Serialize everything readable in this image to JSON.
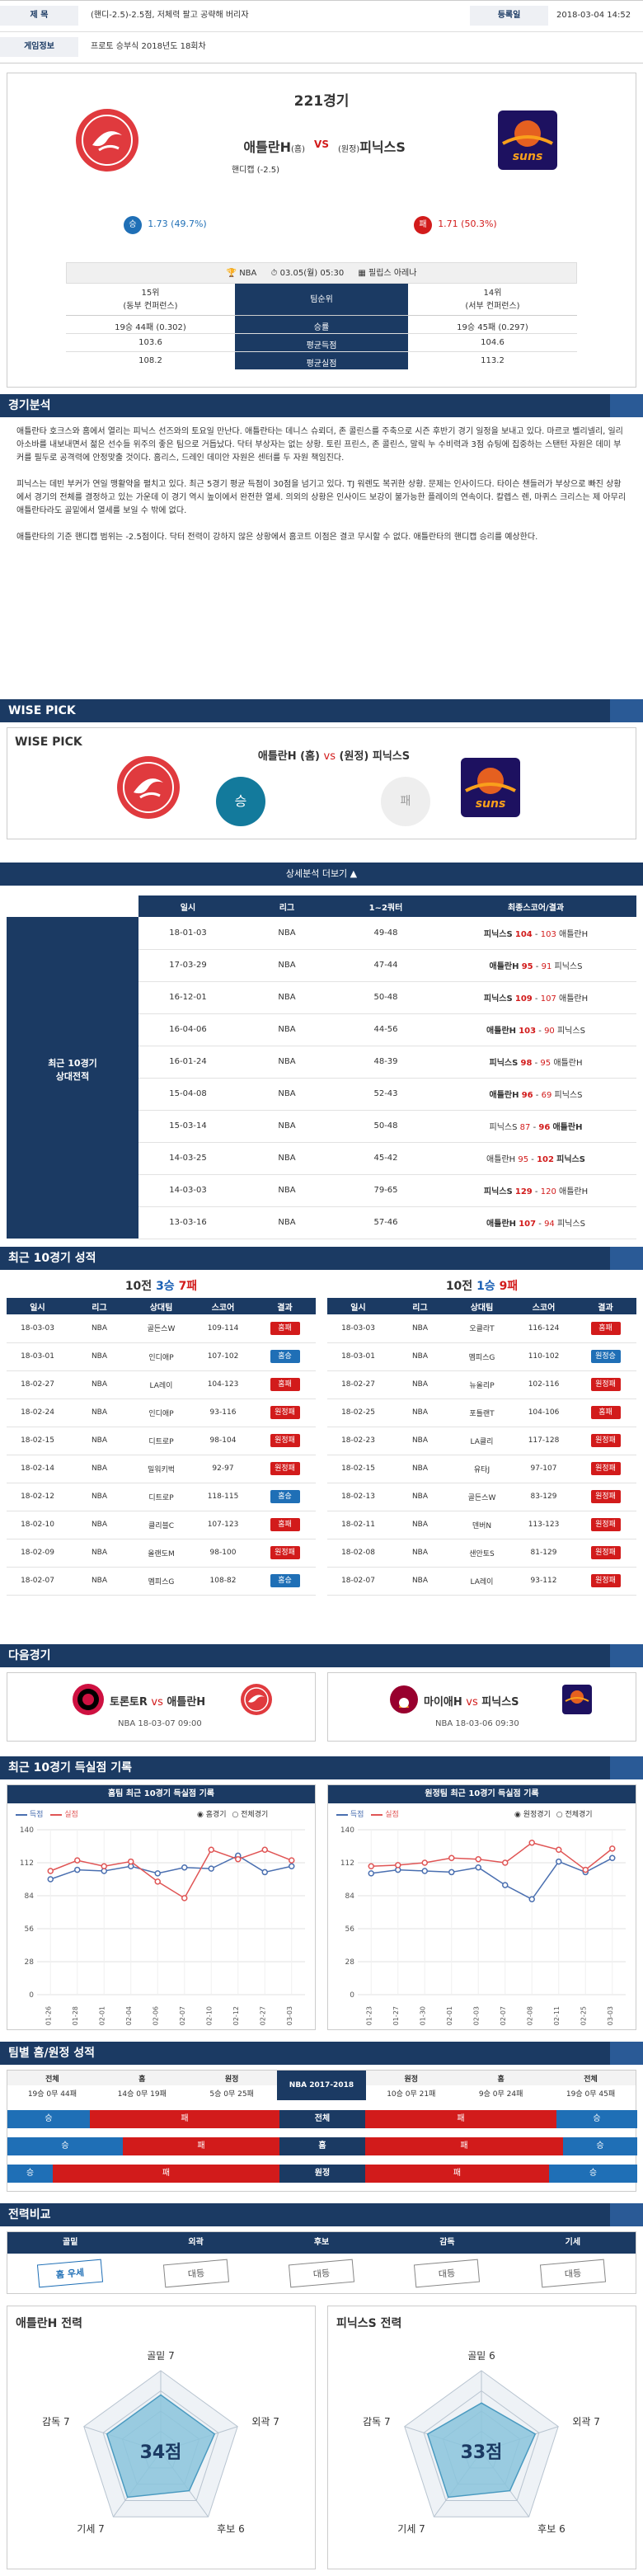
{
  "top": {
    "subject_label": "제 목",
    "subject": "(핸디-2.5)-2.5점, 저체력 팔고 공략해 버리자",
    "date_label": "등록일",
    "date": "2018-03-04 14:52",
    "info_label": "게임정보",
    "info": "프로토 승부식 2018년도 18회차"
  },
  "match": {
    "game_no": "221경기",
    "home_team": "애틀란H",
    "home_tag": "(홈)",
    "vs": "VS",
    "away_tag": "(원정)",
    "away_team": "피닉스S",
    "handicap": "핸디캡 (-2.5)",
    "home_odds_label": "승",
    "home_odds": "1.73 (49.7%)",
    "away_odds_label": "패",
    "away_odds": "1.71 (50.3%)",
    "league": "NBA",
    "datetime": "03.05(월) 05:30",
    "venue": "필립스 아레나"
  },
  "stats": {
    "home_rank": "15위",
    "home_conf": "(동부 컨퍼런스)",
    "away_rank": "14위",
    "away_conf": "(서부 컨퍼런스)",
    "rows": [
      {
        "label": "팀순위",
        "home": "",
        "away": ""
      },
      {
        "label": "승률",
        "home": "19승 44패 (0.302)",
        "away": "19승 45패 (0.297)"
      },
      {
        "label": "평균득점",
        "home": "103.6",
        "away": "104.6"
      },
      {
        "label": "평균실점",
        "home": "108.2",
        "away": "113.2"
      }
    ]
  },
  "analysis": {
    "title": "경기분석",
    "p1": "애틀란타 호크스와 홈에서 열리는 피닉스 선즈와의 토요일 만난다. 애틀란타는 데니스 슈뢰더, 존 콜린스를 주축으로 시즌 후반기 경기 일정을 보내고 있다. 마르코 벨리넬리, 일리아소바를 내보내면서 젊은 선수들 위주의 좋은 팀으로 거듭났다. 닥터 부상자는 없는 상황. 토린 프린스, 존 콜린스, 말릭 누 수비력과 3점 슈팅에 집중하는 스탠턴 자원은 데미 부커를 필두로 공격력에 안정맞출 것이다. 홈리스, 드레인 데미안 자원은 센터를 두 자원 책임진다.",
    "p2": "피닉스는 데빈 부커가 연일 맹활약을 펼치고 있다. 최근 5경기 평균 득점이 30점을 넘기고 있다. TJ 워렌도 복귀한 상황. 문제는 인사이드다. 타이슨 챈들러가 부상으로 빠진 상황에서 경기의 전체를 결정하고 있는 가운데 이 경기 역시 높이에서 완전한 열세. 의외의 상황은 인사이드 보강이 불가능한 플레이의 연속이다. 칼렙스 렌, 마퀴스 크리스는 제 아무리 애틀란타라도 골밑에서 열세를 보일 수 밖에 없다.",
    "p3": "애틀란타의 기준 핸디캡 범위는 -2.5점이다. 닥터 전력이 강하지 않은 상황에서 홈코트 이점은 결코 무시할 수 없다. 애틀란타의 핸디캡 승리를 예상한다."
  },
  "wise": {
    "title": "WISE PICK",
    "sub": "WISE PICK",
    "home": "애틀란H (홈)",
    "vs": "vs",
    "away": "(원정) 피닉스S",
    "pick_win": "승",
    "pick_loss": "패",
    "more": "상세분석 더보기 ▲"
  },
  "h2h": {
    "side_label_1": "최근 10경기",
    "side_label_2": "상대전적",
    "headers": [
      "일시",
      "리그",
      "1~2쿼터",
      "최종스코어/결과"
    ],
    "rows": [
      {
        "date": "18-01-03",
        "league": "NBA",
        "q": "49-48",
        "a": "피닉스S",
        "sa": "104",
        "sb": "103",
        "b": "애틀란H",
        "w": "a"
      },
      {
        "date": "17-03-29",
        "league": "NBA",
        "q": "47-44",
        "a": "애틀란H",
        "sa": "95",
        "sb": "91",
        "b": "피닉스S",
        "w": "a"
      },
      {
        "date": "16-12-01",
        "league": "NBA",
        "q": "50-48",
        "a": "피닉스S",
        "sa": "109",
        "sb": "107",
        "b": "애틀란H",
        "w": "a"
      },
      {
        "date": "16-04-06",
        "league": "NBA",
        "q": "44-56",
        "a": "애틀란H",
        "sa": "103",
        "sb": "90",
        "b": "피닉스S",
        "w": "a"
      },
      {
        "date": "16-01-24",
        "league": "NBA",
        "q": "48-39",
        "a": "피닉스S",
        "sa": "98",
        "sb": "95",
        "b": "애틀란H",
        "w": "a"
      },
      {
        "date": "15-04-08",
        "league": "NBA",
        "q": "52-43",
        "a": "애틀란H",
        "sa": "96",
        "sb": "69",
        "b": "피닉스S",
        "w": "a"
      },
      {
        "date": "15-03-14",
        "league": "NBA",
        "q": "50-48",
        "a": "피닉스S",
        "sa": "87",
        "sb": "96",
        "b": "애틀란H",
        "w": "b"
      },
      {
        "date": "14-03-25",
        "league": "NBA",
        "q": "45-42",
        "a": "애틀란H",
        "sa": "95",
        "sb": "102",
        "b": "피닉스S",
        "w": "b"
      },
      {
        "date": "14-03-03",
        "league": "NBA",
        "q": "79-65",
        "a": "피닉스S",
        "sa": "129",
        "sb": "120",
        "b": "애틀란H",
        "w": "a"
      },
      {
        "date": "13-03-16",
        "league": "NBA",
        "q": "57-46",
        "a": "애틀란H",
        "sa": "107",
        "sb": "94",
        "b": "피닉스S",
        "w": "a"
      }
    ]
  },
  "recent": {
    "title": "최근 10경기 성적",
    "left_prefix": "10전",
    "left_w": "3승",
    "left_l": "7패",
    "right_prefix": "10전",
    "right_w": "1승",
    "right_l": "9패",
    "headers": [
      "일시",
      "리그",
      "상대팀",
      "스코어",
      "결과"
    ],
    "left": [
      {
        "d": "18-03-03",
        "l": "NBA",
        "o": "골든스W",
        "s": "109-114",
        "r": "홈패",
        "t": "loss"
      },
      {
        "d": "18-03-01",
        "l": "NBA",
        "o": "인디애P",
        "s": "107-102",
        "r": "홈승",
        "t": "win"
      },
      {
        "d": "18-02-27",
        "l": "NBA",
        "o": "LA레이",
        "s": "104-123",
        "r": "홈패",
        "t": "loss"
      },
      {
        "d": "18-02-24",
        "l": "NBA",
        "o": "인디애P",
        "s": "93-116",
        "r": "원정패",
        "t": "loss"
      },
      {
        "d": "18-02-15",
        "l": "NBA",
        "o": "디트로P",
        "s": "98-104",
        "r": "원정패",
        "t": "loss"
      },
      {
        "d": "18-02-14",
        "l": "NBA",
        "o": "밀워키벅",
        "s": "92-97",
        "r": "원정패",
        "t": "loss"
      },
      {
        "d": "18-02-12",
        "l": "NBA",
        "o": "디트로P",
        "s": "118-115",
        "r": "홈승",
        "t": "win"
      },
      {
        "d": "18-02-10",
        "l": "NBA",
        "o": "클리블C",
        "s": "107-123",
        "r": "홈패",
        "t": "loss"
      },
      {
        "d": "18-02-09",
        "l": "NBA",
        "o": "올랜도M",
        "s": "98-100",
        "r": "원정패",
        "t": "loss"
      },
      {
        "d": "18-02-07",
        "l": "NBA",
        "o": "멤피스G",
        "s": "108-82",
        "r": "홈승",
        "t": "win"
      }
    ],
    "right": [
      {
        "d": "18-03-03",
        "l": "NBA",
        "o": "오클라T",
        "s": "116-124",
        "r": "홈패",
        "t": "loss"
      },
      {
        "d": "18-03-01",
        "l": "NBA",
        "o": "멤피스G",
        "s": "110-102",
        "r": "원정승",
        "t": "win"
      },
      {
        "d": "18-02-27",
        "l": "NBA",
        "o": "뉴올리P",
        "s": "102-116",
        "r": "원정패",
        "t": "loss"
      },
      {
        "d": "18-02-25",
        "l": "NBA",
        "o": "포틀랜T",
        "s": "104-106",
        "r": "홈패",
        "t": "loss"
      },
      {
        "d": "18-02-23",
        "l": "NBA",
        "o": "LA클리",
        "s": "117-128",
        "r": "원정패",
        "t": "loss"
      },
      {
        "d": "18-02-15",
        "l": "NBA",
        "o": "유타J",
        "s": "97-107",
        "r": "원정패",
        "t": "loss"
      },
      {
        "d": "18-02-13",
        "l": "NBA",
        "o": "골든스W",
        "s": "83-129",
        "r": "원정패",
        "t": "loss"
      },
      {
        "d": "18-02-11",
        "l": "NBA",
        "o": "덴버N",
        "s": "113-123",
        "r": "원정패",
        "t": "loss"
      },
      {
        "d": "18-02-08",
        "l": "NBA",
        "o": "샌안토S",
        "s": "81-129",
        "r": "원정패",
        "t": "loss"
      },
      {
        "d": "18-02-07",
        "l": "NBA",
        "o": "LA레이",
        "s": "93-112",
        "r": "원정패",
        "t": "loss"
      }
    ]
  },
  "next": {
    "title": "다음경기",
    "left_a": "토론토R",
    "left_vs": "vs",
    "left_b": "애틀란H",
    "left_info": "NBA 18-03-07 09:00",
    "right_a": "마이애H",
    "right_vs": "vs",
    "right_b": "피닉스S",
    "right_info": "NBA 18-03-06 09:30"
  },
  "ptchart": {
    "title": "최근 10경기 득실점 기록",
    "left_title": "홈팀 최근 10경기 득실점 기록",
    "right_title": "원정팀 최근 10경기 득실점 기록",
    "legend_for": "득점",
    "legend_against": "실점",
    "radio_home": "홈경기",
    "radio_all": "전체경기",
    "radio_away": "원정경기",
    "radio_all2": "전체경기",
    "color_for": "#4a6fb0",
    "color_against": "#e05555"
  },
  "chart_data": [
    {
      "type": "line",
      "title": "홈팀 최근 10경기 득실점 기록",
      "x": [
        "01-26",
        "01-28",
        "02-01",
        "02-04",
        "02-06",
        "02-07",
        "02-10",
        "02-12",
        "02-27",
        "03-03"
      ],
      "ylim": [
        0,
        140
      ],
      "yticks": [
        0,
        28,
        56,
        84,
        112,
        140
      ],
      "series": [
        {
          "name": "득점",
          "values": [
            98,
            106,
            105,
            109,
            103,
            108,
            107,
            118,
            104,
            109
          ]
        },
        {
          "name": "실점",
          "values": [
            105,
            114,
            109,
            113,
            96,
            82,
            123,
            115,
            123,
            114
          ]
        }
      ]
    },
    {
      "type": "line",
      "title": "원정팀 최근 10경기 득실점 기록",
      "x": [
        "01-23",
        "01-27",
        "01-30",
        "02-01",
        "02-03",
        "02-07",
        "02-08",
        "02-11",
        "02-25",
        "03-03"
      ],
      "ylim": [
        0,
        140
      ],
      "yticks": [
        0,
        28,
        56,
        84,
        112,
        140
      ],
      "series": [
        {
          "name": "득점",
          "values": [
            103,
            106,
            105,
            104,
            108,
            93,
            81,
            113,
            104,
            116
          ]
        },
        {
          "name": "실점",
          "values": [
            109,
            110,
            112,
            116,
            115,
            112,
            129,
            123,
            106,
            124
          ]
        }
      ]
    }
  ],
  "record": {
    "title": "팀별 홈/원정 성적",
    "headers": [
      "전체",
      "홈",
      "원정",
      "NBA 2017-2018",
      "원정",
      "홈",
      "전체"
    ],
    "values": [
      "19승 0무 44패",
      "14승 0무 19패",
      "5승 0무 25패",
      "",
      "10승 0무 21패",
      "9승 0무 24패",
      "19승 0무 45패"
    ],
    "bars": [
      {
        "label": "전체",
        "l_win": "승",
        "l_loss": "패",
        "r_win": "승",
        "r_loss": "패",
        "lw": 0.302,
        "rw": 0.297
      },
      {
        "label": "홈",
        "l_win": "승",
        "l_loss": "패",
        "r_win": "승",
        "r_loss": "패",
        "lw": 0.424,
        "rw": 0.273
      },
      {
        "label": "원정",
        "l_win": "승",
        "l_loss": "패",
        "r_win": "승",
        "r_loss": "패",
        "lw": 0.167,
        "rw": 0.323
      }
    ]
  },
  "compare": {
    "title": "전력비교",
    "headers": [
      "골밑",
      "외곽",
      "후보",
      "감독",
      "기세"
    ],
    "values": [
      "홈 우세",
      "대등",
      "대등",
      "대등",
      "대등"
    ]
  },
  "power": {
    "home_title": "애틀란H 전력",
    "away_title": "피닉스S 전력",
    "home_score": "34점",
    "away_score": "33점",
    "home": [
      {
        "label": "골밑 7",
        "v": 7
      },
      {
        "label": "외곽 7",
        "v": 7
      },
      {
        "label": "후보 6",
        "v": 6
      },
      {
        "label": "기세 7",
        "v": 7
      },
      {
        "label": "감독 7",
        "v": 7
      }
    ],
    "away": [
      {
        "label": "골밑 6",
        "v": 6
      },
      {
        "label": "외곽 7",
        "v": 7
      },
      {
        "label": "후보 6",
        "v": 6
      },
      {
        "label": "기세 7",
        "v": 7
      },
      {
        "label": "감독 7",
        "v": 7
      }
    ]
  }
}
